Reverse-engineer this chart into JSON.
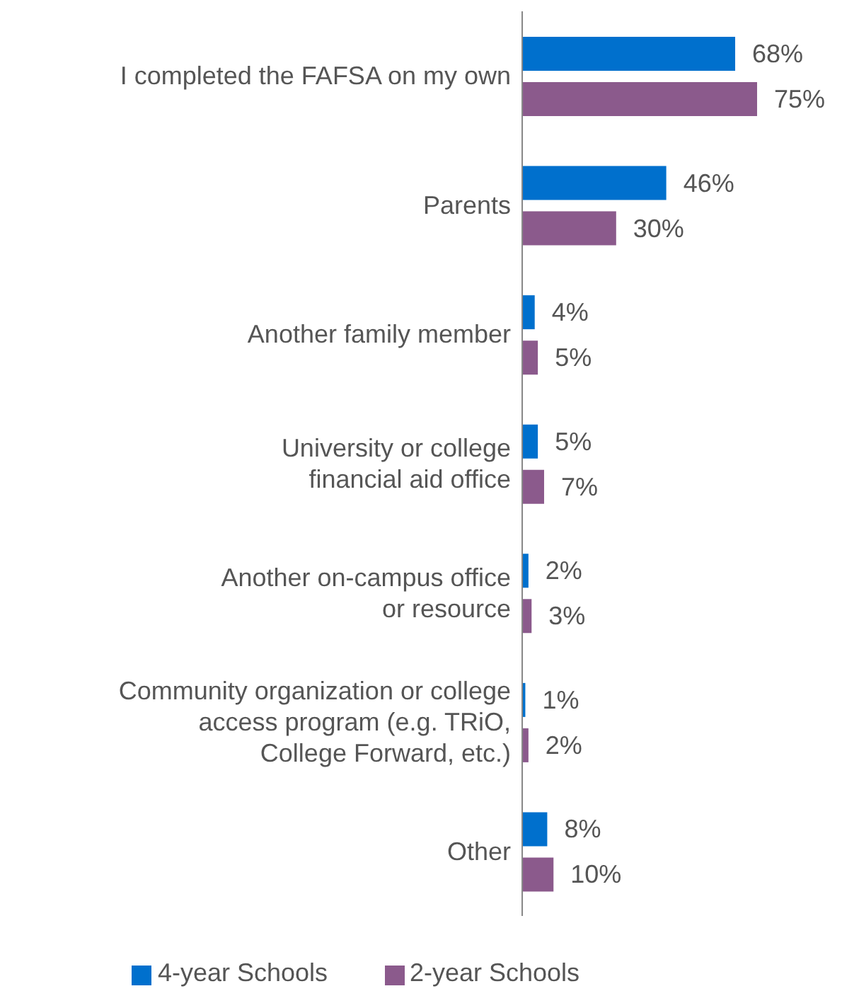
{
  "chart_data": {
    "type": "bar",
    "orientation": "horizontal",
    "categories": [
      "I completed the FAFSA on my own",
      "Parents",
      "Another family member",
      "University or college\nfinancial aid office",
      "Another on-campus office\nor resource",
      "Community organization or college\naccess program (e.g. TRiO,\nCollege Forward, etc.)",
      "Other"
    ],
    "series": [
      {
        "name": "4-year Schools",
        "color": "#0070cd",
        "values": [
          68,
          46,
          4,
          5,
          2,
          1,
          8
        ],
        "value_labels": [
          "68%",
          "46%",
          "4%",
          "5%",
          "2%",
          "1%",
          "8%"
        ]
      },
      {
        "name": "2-year Schools",
        "color": "#8b5a8c",
        "values": [
          75,
          30,
          5,
          7,
          3,
          2,
          10
        ],
        "value_labels": [
          "75%",
          "30%",
          "5%",
          "7%",
          "3%",
          "2%",
          "10%"
        ]
      }
    ],
    "tick_labels": "y",
    "grid": false,
    "legend": "bottom"
  }
}
